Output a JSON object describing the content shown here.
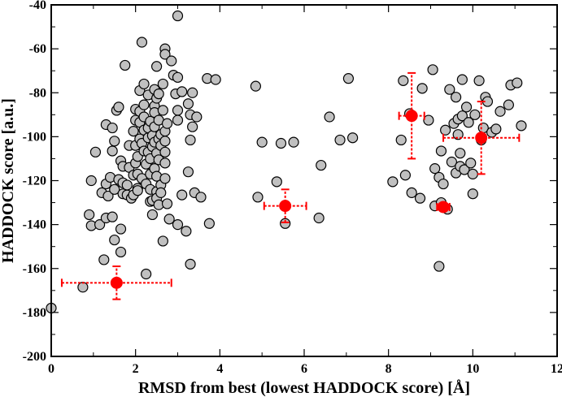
{
  "chart_data": {
    "type": "scatter",
    "xlabel": "RMSD from best (lowest HADDOCK score) [Å]",
    "ylabel": "HADDOCK score [a.u.]",
    "xlim": [
      0,
      12
    ],
    "ylim": [
      -200,
      -40
    ],
    "x_ticks": [
      0,
      2,
      4,
      6,
      8,
      10,
      12
    ],
    "y_ticks": [
      -200,
      -180,
      -160,
      -140,
      -120,
      -100,
      -80,
      -60,
      -40
    ],
    "grid": false,
    "colors": {
      "points_fill": "#c0c0c0",
      "points_stroke": "#000000",
      "cluster": "#ff0000"
    },
    "series": [
      {
        "values": [
          [
            0.0,
            -178
          ],
          [
            0.75,
            -168.5
          ],
          [
            0.9,
            -135.5
          ],
          [
            0.95,
            -140.5
          ],
          [
            0.95,
            -120
          ],
          [
            1.05,
            -107
          ],
          [
            1.15,
            -140
          ],
          [
            1.2,
            -125.5
          ],
          [
            1.25,
            -156
          ],
          [
            1.3,
            -137
          ],
          [
            1.3,
            -121.5
          ],
          [
            1.3,
            -94.5
          ],
          [
            1.35,
            -127
          ],
          [
            1.4,
            -118.5
          ],
          [
            1.45,
            -136.5
          ],
          [
            1.45,
            -106.5
          ],
          [
            1.45,
            -96
          ],
          [
            1.5,
            -147
          ],
          [
            1.5,
            -124
          ],
          [
            1.5,
            -102
          ],
          [
            1.55,
            -88
          ],
          [
            1.6,
            -86.5
          ],
          [
            1.6,
            -119.5
          ],
          [
            1.65,
            -152.5
          ],
          [
            1.65,
            -142
          ],
          [
            1.65,
            -111
          ],
          [
            1.7,
            -113.5
          ],
          [
            1.7,
            -121
          ],
          [
            1.7,
            -126
          ],
          [
            1.75,
            -67.5
          ],
          [
            1.8,
            -122
          ],
          [
            1.8,
            -126.5
          ],
          [
            1.85,
            -104
          ],
          [
            1.85,
            -114
          ],
          [
            1.9,
            -128
          ],
          [
            1.95,
            -117.5
          ],
          [
            1.95,
            -126.5
          ],
          [
            1.95,
            -97.5
          ],
          [
            2.0,
            -87.5
          ],
          [
            2.0,
            -92.5
          ],
          [
            2.0,
            -104
          ],
          [
            2.0,
            -112
          ],
          [
            2.05,
            -109
          ],
          [
            2.05,
            -117
          ],
          [
            2.05,
            -123.5
          ],
          [
            2.05,
            -124.5
          ],
          [
            2.1,
            -79
          ],
          [
            2.1,
            -88.5
          ],
          [
            2.1,
            -93.5
          ],
          [
            2.1,
            -101
          ],
          [
            2.15,
            -57
          ],
          [
            2.15,
            -103
          ],
          [
            2.15,
            -119
          ],
          [
            2.2,
            -76
          ],
          [
            2.2,
            -85.5
          ],
          [
            2.2,
            -91
          ],
          [
            2.2,
            -97
          ],
          [
            2.2,
            -106.5
          ],
          [
            2.25,
            -112.5
          ],
          [
            2.25,
            -121.5
          ],
          [
            2.25,
            -162.5
          ],
          [
            2.3,
            -96
          ],
          [
            2.3,
            -100.5
          ],
          [
            2.3,
            -107
          ],
          [
            2.3,
            -81
          ],
          [
            2.35,
            -93
          ],
          [
            2.35,
            -110
          ],
          [
            2.35,
            -117
          ],
          [
            2.35,
            -124
          ],
          [
            2.35,
            -129.5
          ],
          [
            2.4,
            -99.5
          ],
          [
            2.4,
            -104.5
          ],
          [
            2.4,
            -129
          ],
          [
            2.4,
            -135.5
          ],
          [
            2.45,
            -78.5
          ],
          [
            2.45,
            -86
          ],
          [
            2.45,
            -89
          ],
          [
            2.45,
            -95.5
          ],
          [
            2.45,
            -102.5
          ],
          [
            2.45,
            -114.5
          ],
          [
            2.5,
            -68
          ],
          [
            2.5,
            -82.5
          ],
          [
            2.5,
            -107.5
          ],
          [
            2.5,
            -118
          ],
          [
            2.5,
            -125
          ],
          [
            2.5,
            -128
          ],
          [
            2.55,
            -80.5
          ],
          [
            2.55,
            -92.5
          ],
          [
            2.55,
            -101
          ],
          [
            2.55,
            -110.5
          ],
          [
            2.55,
            -131
          ],
          [
            2.6,
            -99
          ],
          [
            2.6,
            -104
          ],
          [
            2.6,
            -122
          ],
          [
            2.6,
            -125.5
          ],
          [
            2.65,
            -147.5
          ],
          [
            2.65,
            -76
          ],
          [
            2.65,
            -88
          ],
          [
            2.7,
            -60
          ],
          [
            2.7,
            -62.5
          ],
          [
            2.7,
            -97.5
          ],
          [
            2.7,
            -102
          ],
          [
            2.7,
            -107
          ],
          [
            2.7,
            -112
          ],
          [
            2.7,
            -119
          ],
          [
            2.75,
            -94
          ],
          [
            2.75,
            -130.5
          ],
          [
            2.8,
            -137.5
          ],
          [
            2.85,
            -65.5
          ],
          [
            2.9,
            -72
          ],
          [
            2.95,
            -80.5
          ],
          [
            3.0,
            -45
          ],
          [
            3.0,
            -73
          ],
          [
            3.0,
            -88
          ],
          [
            3.0,
            -92.5
          ],
          [
            3.0,
            -140
          ],
          [
            3.1,
            -79.5
          ],
          [
            3.1,
            -126.5
          ],
          [
            3.2,
            -143
          ],
          [
            3.25,
            -116
          ],
          [
            3.25,
            -85
          ],
          [
            3.3,
            -101.5
          ],
          [
            3.3,
            -158
          ],
          [
            3.3,
            -90
          ],
          [
            3.35,
            -80
          ],
          [
            3.35,
            -95.5
          ],
          [
            3.4,
            -125.5
          ],
          [
            3.45,
            -91
          ],
          [
            3.55,
            -127.5
          ],
          [
            3.7,
            -73.5
          ],
          [
            3.75,
            -139.5
          ],
          [
            3.9,
            -74
          ],
          [
            4.85,
            -77
          ],
          [
            4.9,
            -127.5
          ],
          [
            5.0,
            -102.5
          ],
          [
            5.35,
            -120.5
          ],
          [
            5.45,
            -103
          ],
          [
            5.55,
            -139.5
          ],
          [
            5.75,
            -102.5
          ],
          [
            6.35,
            -137
          ],
          [
            6.4,
            -113
          ],
          [
            6.6,
            -91
          ],
          [
            6.85,
            -101.5
          ],
          [
            7.05,
            -73.5
          ],
          [
            7.15,
            -100.5
          ],
          [
            8.1,
            -120.5
          ],
          [
            8.3,
            -101.5
          ],
          [
            8.35,
            -74.5
          ],
          [
            8.4,
            -117.5
          ],
          [
            8.5,
            -89.5
          ],
          [
            8.55,
            -125.5
          ],
          [
            8.75,
            -128
          ],
          [
            8.8,
            -78
          ],
          [
            8.95,
            -92.5
          ],
          [
            9.05,
            -69.5
          ],
          [
            9.1,
            -114.5
          ],
          [
            9.1,
            -131.5
          ],
          [
            9.2,
            -159
          ],
          [
            9.2,
            -118.5
          ],
          [
            9.25,
            -106.5
          ],
          [
            9.25,
            -130
          ],
          [
            9.3,
            -121.5
          ],
          [
            9.35,
            -97
          ],
          [
            9.4,
            -133
          ],
          [
            9.45,
            -78.5
          ],
          [
            9.5,
            -111.5
          ],
          [
            9.55,
            -94
          ],
          [
            9.6,
            -116.5
          ],
          [
            9.6,
            -82
          ],
          [
            9.65,
            -92
          ],
          [
            9.65,
            -99
          ],
          [
            9.7,
            -107.5
          ],
          [
            9.7,
            -113.5
          ],
          [
            9.75,
            -74
          ],
          [
            9.75,
            -90.5
          ],
          [
            9.8,
            -115
          ],
          [
            9.85,
            -86.5
          ],
          [
            9.9,
            -93.5
          ],
          [
            9.95,
            -112
          ],
          [
            10.0,
            -126
          ],
          [
            10.0,
            -117
          ],
          [
            10.05,
            -90
          ],
          [
            10.15,
            -74.5
          ],
          [
            10.2,
            -101.5
          ],
          [
            10.25,
            -96
          ],
          [
            10.3,
            -82
          ],
          [
            10.35,
            -84
          ],
          [
            10.45,
            -98
          ],
          [
            10.55,
            -96.5
          ],
          [
            10.65,
            -88.5
          ],
          [
            10.85,
            -85.5
          ],
          [
            10.9,
            -76.5
          ],
          [
            11.05,
            -75.5
          ],
          [
            11.15,
            -95
          ]
        ]
      },
      {
        "values": [
          {
            "x": 1.55,
            "y": -166.5,
            "xerr": 1.3,
            "yerr": 7.5
          },
          {
            "x": 5.55,
            "y": -131.5,
            "xerr": 0.5,
            "yerr": 7.5
          },
          {
            "x": 8.55,
            "y": -90.5,
            "xerr": 0.3,
            "yerr": 19.5
          },
          {
            "x": 9.3,
            "y": -132,
            "xerr": 0.15,
            "yerr": 1.5
          },
          {
            "x": 10.2,
            "y": -100.5,
            "xerr": 0.9,
            "yerr": 16.5
          }
        ]
      }
    ]
  }
}
